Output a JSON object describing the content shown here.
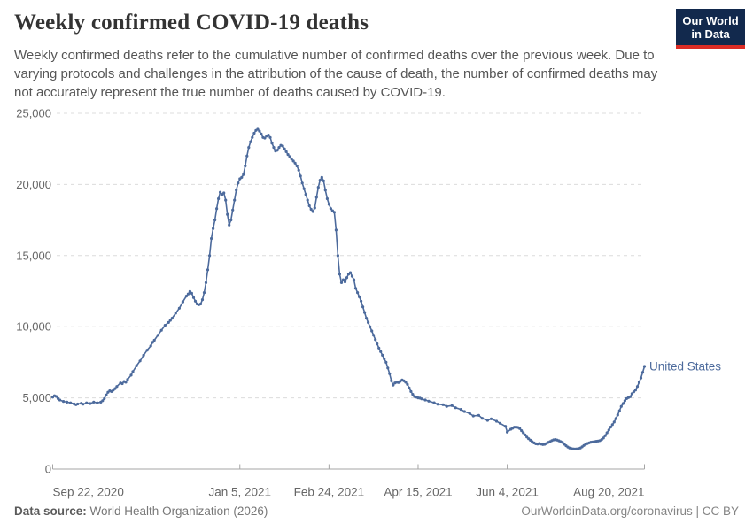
{
  "header": {
    "title": "Weekly confirmed COVID-19 deaths",
    "subtitle_lines": [
      "Weekly confirmed deaths refer to the cumulative number of confirmed deaths over the previous week. Due to",
      "varying protocols and challenges in the attribution of the cause of death, the number of confirmed deaths may",
      "not accurately represent the true number of deaths caused by COVID-19."
    ],
    "logo": {
      "line1": "Our World",
      "line2": "in Data",
      "bg_color": "#12294d",
      "stripe_color": "#dc2c25"
    }
  },
  "chart_data": {
    "type": "line",
    "title": "Weekly confirmed COVID-19 deaths",
    "x_axis": {
      "day0_date": "Sep 22, 2020",
      "range_days": [
        0,
        332
      ],
      "ticks": [
        {
          "day": 0,
          "label": "Sep 22, 2020"
        },
        {
          "day": 105,
          "label": "Jan 5, 2021"
        },
        {
          "day": 155,
          "label": "Feb 24, 2021"
        },
        {
          "day": 205,
          "label": "Apr 15, 2021"
        },
        {
          "day": 255,
          "label": "Jun 4, 2021"
        },
        {
          "day": 332,
          "label": "Aug 20, 2021"
        }
      ]
    },
    "y_axis": {
      "range": [
        0,
        25000
      ],
      "ticks": [
        0,
        5000,
        10000,
        15000,
        20000,
        25000
      ],
      "tick_labels": [
        "0",
        "5,000",
        "10,000",
        "15,000",
        "20,000",
        "25,000"
      ],
      "gridlines": "dashed"
    },
    "legend_position": "end-of-line-label",
    "series": [
      {
        "name": "United States",
        "color": "#4C6A9C",
        "points": [
          [
            0,
            5050
          ],
          [
            1,
            5150
          ],
          [
            2,
            5100
          ],
          [
            3,
            4950
          ],
          [
            4,
            4850
          ],
          [
            6,
            4750
          ],
          [
            8,
            4700
          ],
          [
            10,
            4650
          ],
          [
            12,
            4580
          ],
          [
            13,
            4520
          ],
          [
            14,
            4570
          ],
          [
            16,
            4620
          ],
          [
            17,
            4560
          ],
          [
            19,
            4650
          ],
          [
            21,
            4600
          ],
          [
            23,
            4700
          ],
          [
            25,
            4650
          ],
          [
            27,
            4700
          ],
          [
            28,
            4800
          ],
          [
            29,
            4950
          ],
          [
            30,
            5200
          ],
          [
            31,
            5400
          ],
          [
            32,
            5500
          ],
          [
            33,
            5450
          ],
          [
            34,
            5550
          ],
          [
            35,
            5650
          ],
          [
            36,
            5800
          ],
          [
            38,
            6050
          ],
          [
            39,
            6000
          ],
          [
            40,
            6150
          ],
          [
            41,
            6100
          ],
          [
            42,
            6300
          ],
          [
            44,
            6600
          ],
          [
            45,
            6850
          ],
          [
            47,
            7250
          ],
          [
            49,
            7600
          ],
          [
            51,
            8000
          ],
          [
            53,
            8350
          ],
          [
            55,
            8650
          ],
          [
            56,
            8900
          ],
          [
            57,
            9050
          ],
          [
            59,
            9400
          ],
          [
            61,
            9750
          ],
          [
            63,
            10100
          ],
          [
            65,
            10300
          ],
          [
            66,
            10450
          ],
          [
            67,
            10600
          ],
          [
            69,
            10950
          ],
          [
            71,
            11300
          ],
          [
            73,
            11750
          ],
          [
            75,
            12150
          ],
          [
            76,
            12300
          ],
          [
            77,
            12480
          ],
          [
            78,
            12350
          ],
          [
            79,
            12050
          ],
          [
            80,
            11800
          ],
          [
            81,
            11600
          ],
          [
            82,
            11550
          ],
          [
            83,
            11600
          ],
          [
            84,
            11900
          ],
          [
            85,
            12400
          ],
          [
            86,
            13100
          ],
          [
            87,
            14000
          ],
          [
            88,
            15000
          ],
          [
            89,
            16200
          ],
          [
            90,
            16900
          ],
          [
            91,
            17500
          ],
          [
            92,
            18300
          ],
          [
            93,
            19000
          ],
          [
            94,
            19450
          ],
          [
            95,
            19300
          ],
          [
            96,
            19400
          ],
          [
            97,
            18900
          ],
          [
            98,
            17900
          ],
          [
            99,
            17150
          ],
          [
            100,
            17500
          ],
          [
            101,
            18200
          ],
          [
            102,
            18900
          ],
          [
            103,
            19600
          ],
          [
            104,
            20100
          ],
          [
            105,
            20400
          ],
          [
            106,
            20500
          ],
          [
            107,
            20700
          ],
          [
            108,
            21300
          ],
          [
            109,
            22000
          ],
          [
            110,
            22600
          ],
          [
            111,
            23000
          ],
          [
            112,
            23300
          ],
          [
            113,
            23600
          ],
          [
            114,
            23800
          ],
          [
            115,
            23880
          ],
          [
            116,
            23750
          ],
          [
            117,
            23550
          ],
          [
            118,
            23300
          ],
          [
            119,
            23260
          ],
          [
            120,
            23400
          ],
          [
            121,
            23470
          ],
          [
            122,
            23300
          ],
          [
            123,
            22900
          ],
          [
            124,
            22600
          ],
          [
            125,
            22350
          ],
          [
            126,
            22400
          ],
          [
            127,
            22600
          ],
          [
            128,
            22750
          ],
          [
            129,
            22700
          ],
          [
            130,
            22500
          ],
          [
            131,
            22300
          ],
          [
            132,
            22100
          ],
          [
            133,
            21950
          ],
          [
            134,
            21800
          ],
          [
            135,
            21650
          ],
          [
            136,
            21500
          ],
          [
            137,
            21300
          ],
          [
            138,
            21000
          ],
          [
            139,
            20600
          ],
          [
            140,
            20100
          ],
          [
            141,
            19700
          ],
          [
            142,
            19300
          ],
          [
            143,
            18900
          ],
          [
            144,
            18500
          ],
          [
            145,
            18250
          ],
          [
            146,
            18100
          ],
          [
            147,
            18350
          ],
          [
            148,
            19100
          ],
          [
            149,
            19800
          ],
          [
            150,
            20300
          ],
          [
            151,
            20500
          ],
          [
            152,
            20250
          ],
          [
            153,
            19600
          ],
          [
            154,
            19000
          ],
          [
            155,
            18600
          ],
          [
            156,
            18300
          ],
          [
            157,
            18150
          ],
          [
            158,
            18050
          ],
          [
            159,
            16800
          ],
          [
            160,
            15000
          ],
          [
            161,
            13700
          ],
          [
            162,
            13100
          ],
          [
            163,
            13300
          ],
          [
            164,
            13150
          ],
          [
            165,
            13450
          ],
          [
            166,
            13700
          ],
          [
            167,
            13800
          ],
          [
            168,
            13550
          ],
          [
            169,
            13300
          ],
          [
            170,
            12700
          ],
          [
            171,
            12400
          ],
          [
            172,
            12100
          ],
          [
            173,
            11800
          ],
          [
            174,
            11400
          ],
          [
            175,
            11000
          ],
          [
            176,
            10600
          ],
          [
            177,
            10300
          ],
          [
            178,
            10000
          ],
          [
            179,
            9700
          ],
          [
            180,
            9400
          ],
          [
            181,
            9100
          ],
          [
            182,
            8800
          ],
          [
            183,
            8500
          ],
          [
            184,
            8250
          ],
          [
            185,
            8000
          ],
          [
            186,
            7750
          ],
          [
            187,
            7500
          ],
          [
            188,
            7100
          ],
          [
            189,
            6700
          ],
          [
            190,
            6200
          ],
          [
            191,
            5900
          ],
          [
            192,
            6050
          ],
          [
            193,
            6100
          ],
          [
            194,
            6080
          ],
          [
            195,
            6160
          ],
          [
            196,
            6260
          ],
          [
            197,
            6200
          ],
          [
            198,
            6100
          ],
          [
            199,
            5950
          ],
          [
            200,
            5700
          ],
          [
            201,
            5450
          ],
          [
            202,
            5250
          ],
          [
            203,
            5100
          ],
          [
            204,
            5050
          ],
          [
            205,
            5000
          ],
          [
            206,
            4980
          ],
          [
            207,
            4930
          ],
          [
            209,
            4850
          ],
          [
            211,
            4770
          ],
          [
            214,
            4660
          ],
          [
            216,
            4560
          ],
          [
            219,
            4520
          ],
          [
            221,
            4400
          ],
          [
            224,
            4460
          ],
          [
            226,
            4310
          ],
          [
            229,
            4190
          ],
          [
            231,
            4040
          ],
          [
            234,
            3900
          ],
          [
            236,
            3730
          ],
          [
            239,
            3775
          ],
          [
            241,
            3565
          ],
          [
            244,
            3420
          ],
          [
            246,
            3525
          ],
          [
            249,
            3360
          ],
          [
            251,
            3215
          ],
          [
            254,
            3005
          ],
          [
            255,
            2600
          ],
          [
            257,
            2800
          ],
          [
            258,
            2870
          ],
          [
            259,
            2940
          ],
          [
            260,
            2950
          ],
          [
            261,
            2920
          ],
          [
            262,
            2850
          ],
          [
            263,
            2700
          ],
          [
            264,
            2550
          ],
          [
            265,
            2400
          ],
          [
            266,
            2250
          ],
          [
            267,
            2130
          ],
          [
            268,
            2030
          ],
          [
            269,
            1930
          ],
          [
            270,
            1840
          ],
          [
            271,
            1780
          ],
          [
            272,
            1760
          ],
          [
            273,
            1800
          ],
          [
            274,
            1760
          ],
          [
            275,
            1720
          ],
          [
            276,
            1740
          ],
          [
            277,
            1800
          ],
          [
            278,
            1870
          ],
          [
            279,
            1930
          ],
          [
            280,
            2000
          ],
          [
            281,
            2050
          ],
          [
            282,
            2075
          ],
          [
            283,
            2040
          ],
          [
            284,
            1990
          ],
          [
            285,
            1930
          ],
          [
            286,
            1870
          ],
          [
            287,
            1750
          ],
          [
            288,
            1640
          ],
          [
            289,
            1550
          ],
          [
            290,
            1480
          ],
          [
            291,
            1440
          ],
          [
            292,
            1415
          ],
          [
            293,
            1410
          ],
          [
            294,
            1415
          ],
          [
            295,
            1440
          ],
          [
            296,
            1480
          ],
          [
            297,
            1560
          ],
          [
            298,
            1660
          ],
          [
            299,
            1740
          ],
          [
            300,
            1800
          ],
          [
            301,
            1850
          ],
          [
            302,
            1890
          ],
          [
            303,
            1910
          ],
          [
            304,
            1930
          ],
          [
            305,
            1950
          ],
          [
            306,
            1970
          ],
          [
            307,
            2000
          ],
          [
            308,
            2075
          ],
          [
            309,
            2180
          ],
          [
            310,
            2350
          ],
          [
            311,
            2550
          ],
          [
            312,
            2750
          ],
          [
            313,
            2950
          ],
          [
            314,
            3120
          ],
          [
            315,
            3300
          ],
          [
            316,
            3550
          ],
          [
            317,
            3800
          ],
          [
            318,
            4100
          ],
          [
            319,
            4400
          ],
          [
            320,
            4600
          ],
          [
            321,
            4800
          ],
          [
            322,
            4950
          ],
          [
            323,
            5020
          ],
          [
            324,
            5080
          ],
          [
            325,
            5290
          ],
          [
            326,
            5430
          ],
          [
            327,
            5550
          ],
          [
            328,
            5800
          ],
          [
            329,
            6100
          ],
          [
            330,
            6400
          ],
          [
            331,
            6800
          ],
          [
            332,
            7214
          ]
        ]
      }
    ],
    "styles": {
      "grid_color": "#dcdcdc",
      "axis_color": "#a5a5a5",
      "tick_label_color": "#666666"
    }
  },
  "footer": {
    "source_label": "Data source:",
    "source_value": " World Health Organization (2026)",
    "site_link": "OurWorldinData.org/coronavirus",
    "separator": " | ",
    "license": "CC BY"
  }
}
